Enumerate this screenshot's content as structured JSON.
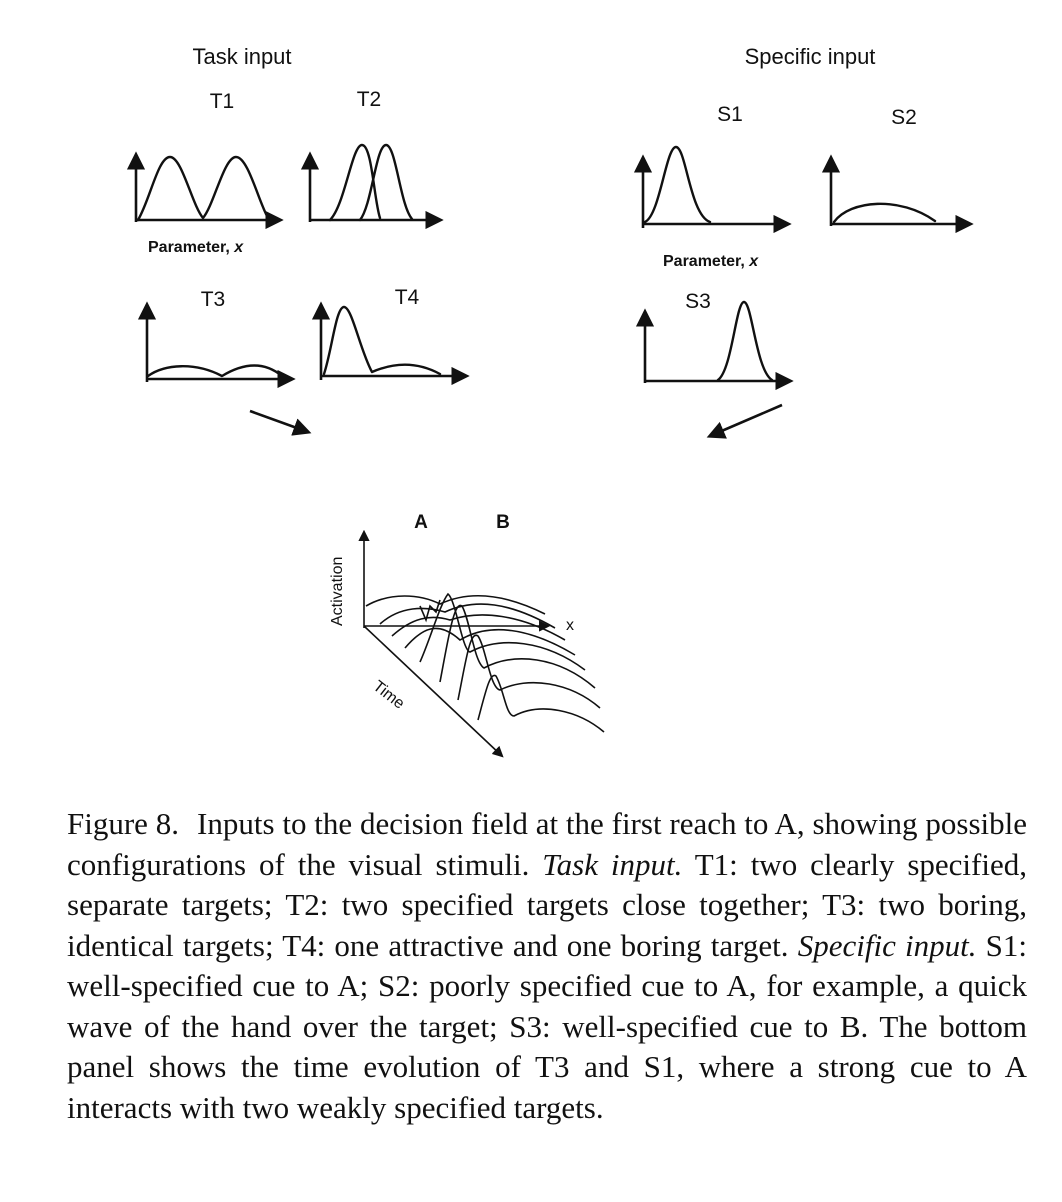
{
  "figure": {
    "task_heading": "Task input",
    "specific_heading": "Specific input",
    "panels": {
      "t1": "T1",
      "t2": "T2",
      "t3": "T3",
      "t4": "T4",
      "s1": "S1",
      "s2": "S2",
      "s3": "S3"
    },
    "parameter_label_prefix": "Parameter, ",
    "parameter_label_var": "x",
    "bottom": {
      "label_a": "A",
      "label_b": "B",
      "activation_label": "Activation",
      "time_label": "Time",
      "x_label": "x"
    }
  },
  "caption": {
    "figure_label": "Figure 8.",
    "text_1": "Inputs to the decision field at the first reach to A, showing possible configurations of the visual stimuli. ",
    "italic_1": "Task input.",
    "text_2": " T1: two clearly specified, separate targets; T2: two specified targets close together; T3: two boring, identical targets; T4: one attractive and one boring target. ",
    "italic_2": "Specific input.",
    "text_3": " S1: well-specified cue to A; S2: poorly specified cue to A, for example, a quick wave of the hand over the target; S3: well-specified cue to B. The bottom panel shows the time evolution of T3 and S1, where a strong cue to A interacts with two weakly specified targets."
  }
}
